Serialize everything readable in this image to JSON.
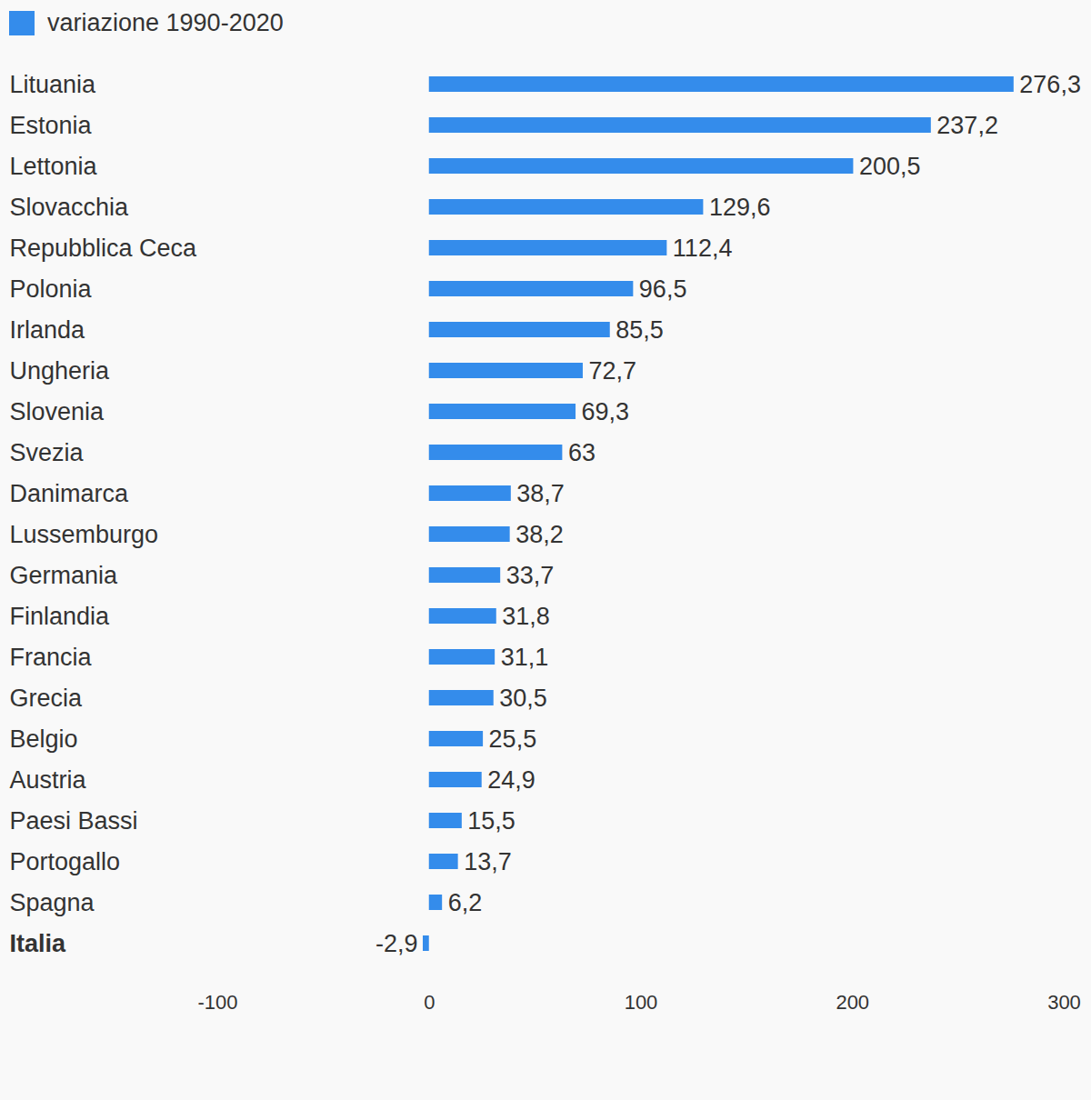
{
  "chart_data": {
    "type": "bar",
    "orientation": "horizontal",
    "legend": "top-left",
    "data_labels": true,
    "grid": false,
    "categories": [
      "Lituania",
      "Estonia",
      "Lettonia",
      "Slovacchia",
      "Repubblica Ceca",
      "Polonia",
      "Irlanda",
      "Ungheria",
      "Slovenia",
      "Svezia",
      "Danimarca",
      "Lussemburgo",
      "Germania",
      "Finlandia",
      "Francia",
      "Grecia",
      "Belgio",
      "Austria",
      "Paesi Bassi",
      "Portogallo",
      "Spagna",
      "Italia"
    ],
    "series": [
      {
        "name": "variazione 1990-2020",
        "color": "#348ceb",
        "values": [
          276.3,
          237.2,
          200.5,
          129.6,
          112.4,
          96.5,
          85.5,
          72.7,
          69.3,
          63,
          38.7,
          38.2,
          33.7,
          31.8,
          31.1,
          30.5,
          25.5,
          24.9,
          15.5,
          13.7,
          6.2,
          -2.9
        ],
        "value_labels": [
          "276,3",
          "237,2",
          "200,5",
          "129,6",
          "112,4",
          "96,5",
          "85,5",
          "72,7",
          "69,3",
          "63",
          "38,7",
          "38,2",
          "33,7",
          "31,8",
          "31,1",
          "30,5",
          "25,5",
          "24,9",
          "15,5",
          "13,7",
          "6,2",
          "-2,9"
        ]
      }
    ],
    "xlim": [
      -100,
      300
    ],
    "xticks": [
      -100,
      0,
      100,
      200,
      300
    ]
  }
}
